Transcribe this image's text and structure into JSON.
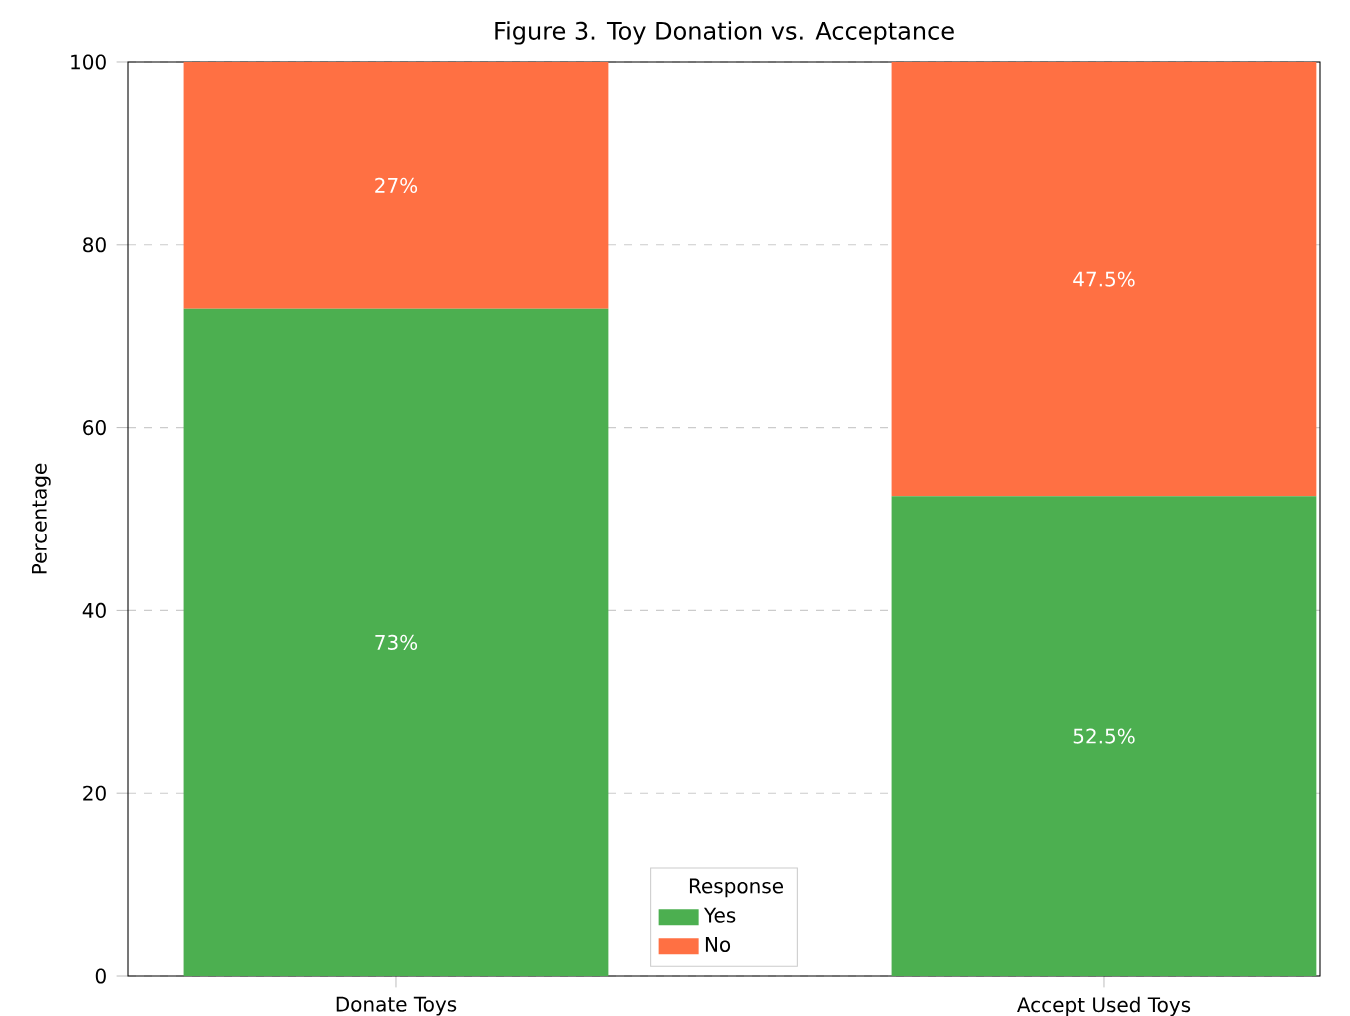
{
  "chart_data": {
    "type": "bar",
    "title": "Figure 3. Toy Donation vs. Acceptance",
    "ylabel": "Percentage",
    "legend_title": "Response",
    "categories": [
      "Donate Toys",
      "Accept Used Toys"
    ],
    "series": [
      {
        "name": "Yes",
        "color": "#4caf50",
        "values": [
          73,
          52.5
        ],
        "value_labels": [
          "73%",
          "52.5%"
        ]
      },
      {
        "name": "No",
        "color": "#ff7043",
        "values": [
          27,
          47.5
        ],
        "value_labels": [
          "27%",
          "47.5%"
        ]
      }
    ],
    "stacked": true,
    "ylim": [
      0,
      100
    ],
    "yticks": [
      0,
      20,
      40,
      60,
      80,
      100
    ],
    "grid": "y",
    "legend": "bottom"
  }
}
